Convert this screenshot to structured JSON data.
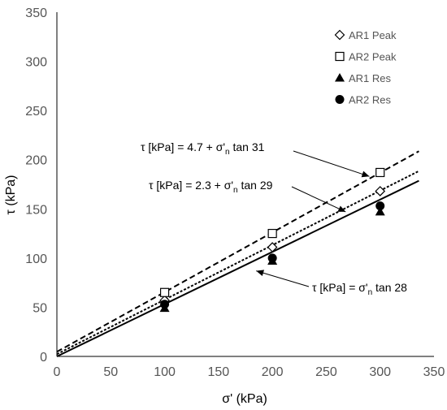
{
  "chart_data": {
    "type": "scatter",
    "title": "",
    "xlabel": "σ' (kPa)",
    "ylabel": "τ (kPa)",
    "xlim": [
      0,
      350
    ],
    "ylim": [
      0,
      350
    ],
    "x_ticks": [
      0,
      50,
      100,
      150,
      200,
      250,
      300,
      350
    ],
    "y_ticks": [
      0,
      50,
      100,
      150,
      200,
      250,
      300,
      350
    ],
    "grid": false,
    "legend_position": "top-right",
    "series": [
      {
        "name": "AR1 Peak",
        "marker": "diamond-open",
        "x": [
          100,
          200,
          300
        ],
        "y": [
          57,
          111,
          168
        ]
      },
      {
        "name": "AR2 Peak",
        "marker": "square-open",
        "x": [
          100,
          200,
          300
        ],
        "y": [
          65,
          125,
          187
        ]
      },
      {
        "name": "AR1 Res",
        "marker": "triangle-filled",
        "x": [
          100,
          200,
          300
        ],
        "y": [
          49,
          97,
          147
        ]
      },
      {
        "name": "AR2 Res",
        "marker": "circle-filled",
        "x": [
          100,
          200,
          300
        ],
        "y": [
          53,
          100,
          153
        ]
      }
    ],
    "fit_lines": [
      {
        "style": "dashed",
        "x": [
          0,
          336
        ],
        "y": [
          4.7,
          208.6
        ]
      },
      {
        "style": "dotted",
        "x": [
          0,
          336
        ],
        "y": [
          2.3,
          188.5
        ]
      },
      {
        "style": "solid",
        "x": [
          0,
          336
        ],
        "y": [
          0,
          178.6
        ]
      }
    ],
    "annotations": [
      {
        "prefix": "τ [kPa] = 4.7 + σ'",
        "subscript": "n",
        "suffix": " tan 31",
        "arrow_to": [
          290,
          183
        ]
      },
      {
        "prefix": "τ [kPa] = 2.3 + σ'",
        "subscript": "n",
        "suffix": " tan 29",
        "arrow_to": [
          268,
          147
        ]
      },
      {
        "prefix": "τ [kPa] = σ'",
        "subscript": "n",
        "suffix": " tan 28",
        "arrow_to": [
          185,
          87
        ]
      }
    ],
    "colors": {
      "markers": "#000000",
      "lines": "#000000",
      "axis": "#000000",
      "ticks_text": "#555555"
    }
  }
}
